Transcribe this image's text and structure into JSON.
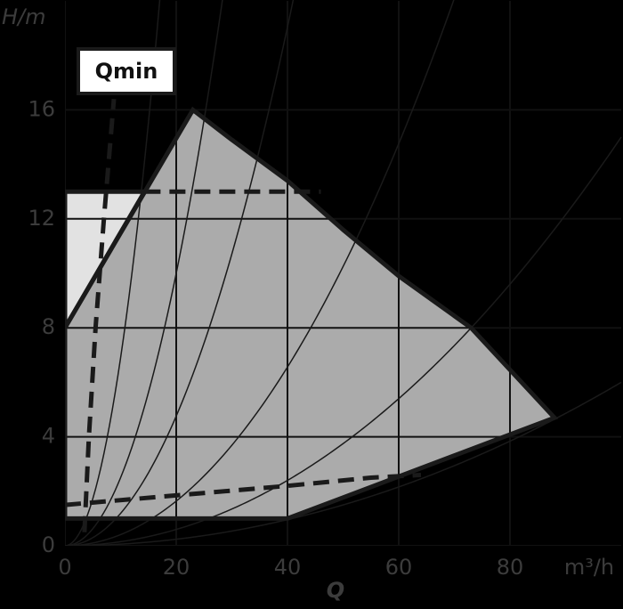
{
  "chart_data": {
    "type": "area",
    "xlabel": "Q",
    "x_unit": "m³/h",
    "ylabel": "H/m",
    "annotation": "Qmin",
    "xlim": [
      0,
      100
    ],
    "ylim": [
      0,
      20
    ],
    "xticks": [
      0,
      20,
      40,
      60,
      80
    ],
    "yticks": [
      0,
      4,
      8,
      12,
      16
    ],
    "grid": true,
    "grid_color": "#111111",
    "areas": [
      {
        "color": "#e2e2e2",
        "x": [
          0,
          0,
          14.3
        ],
        "y": [
          8,
          13,
          13
        ]
      },
      {
        "color": "#ababab",
        "x": [
          0,
          0,
          23,
          30,
          40,
          50,
          60,
          73,
          88,
          40
        ],
        "y": [
          1,
          8,
          16,
          14.9,
          13.4,
          11.6,
          9.9,
          8,
          4.7,
          1
        ]
      }
    ],
    "outline_color": "#1a1a1a",
    "dashed_lines": [
      {
        "color": "#1a1a1a",
        "x": [
          3.5,
          4.3,
          5.5,
          7,
          8.8
        ],
        "y": [
          0.5,
          4,
          8,
          12,
          16.4
        ]
      },
      {
        "color": "#1a1a1a",
        "x": [
          14.3,
          46
        ],
        "y": [
          13,
          13
        ]
      },
      {
        "color": "#1a1a1a",
        "x": [
          0,
          20,
          40,
          55,
          64
        ],
        "y": [
          1.5,
          1.85,
          2.2,
          2.5,
          2.6
        ]
      }
    ],
    "system_curves": {
      "color": "#1a1a1a",
      "k": [
        0.069,
        0.025,
        0.0119,
        0.0041,
        0.0015,
        0.0006
      ]
    }
  }
}
